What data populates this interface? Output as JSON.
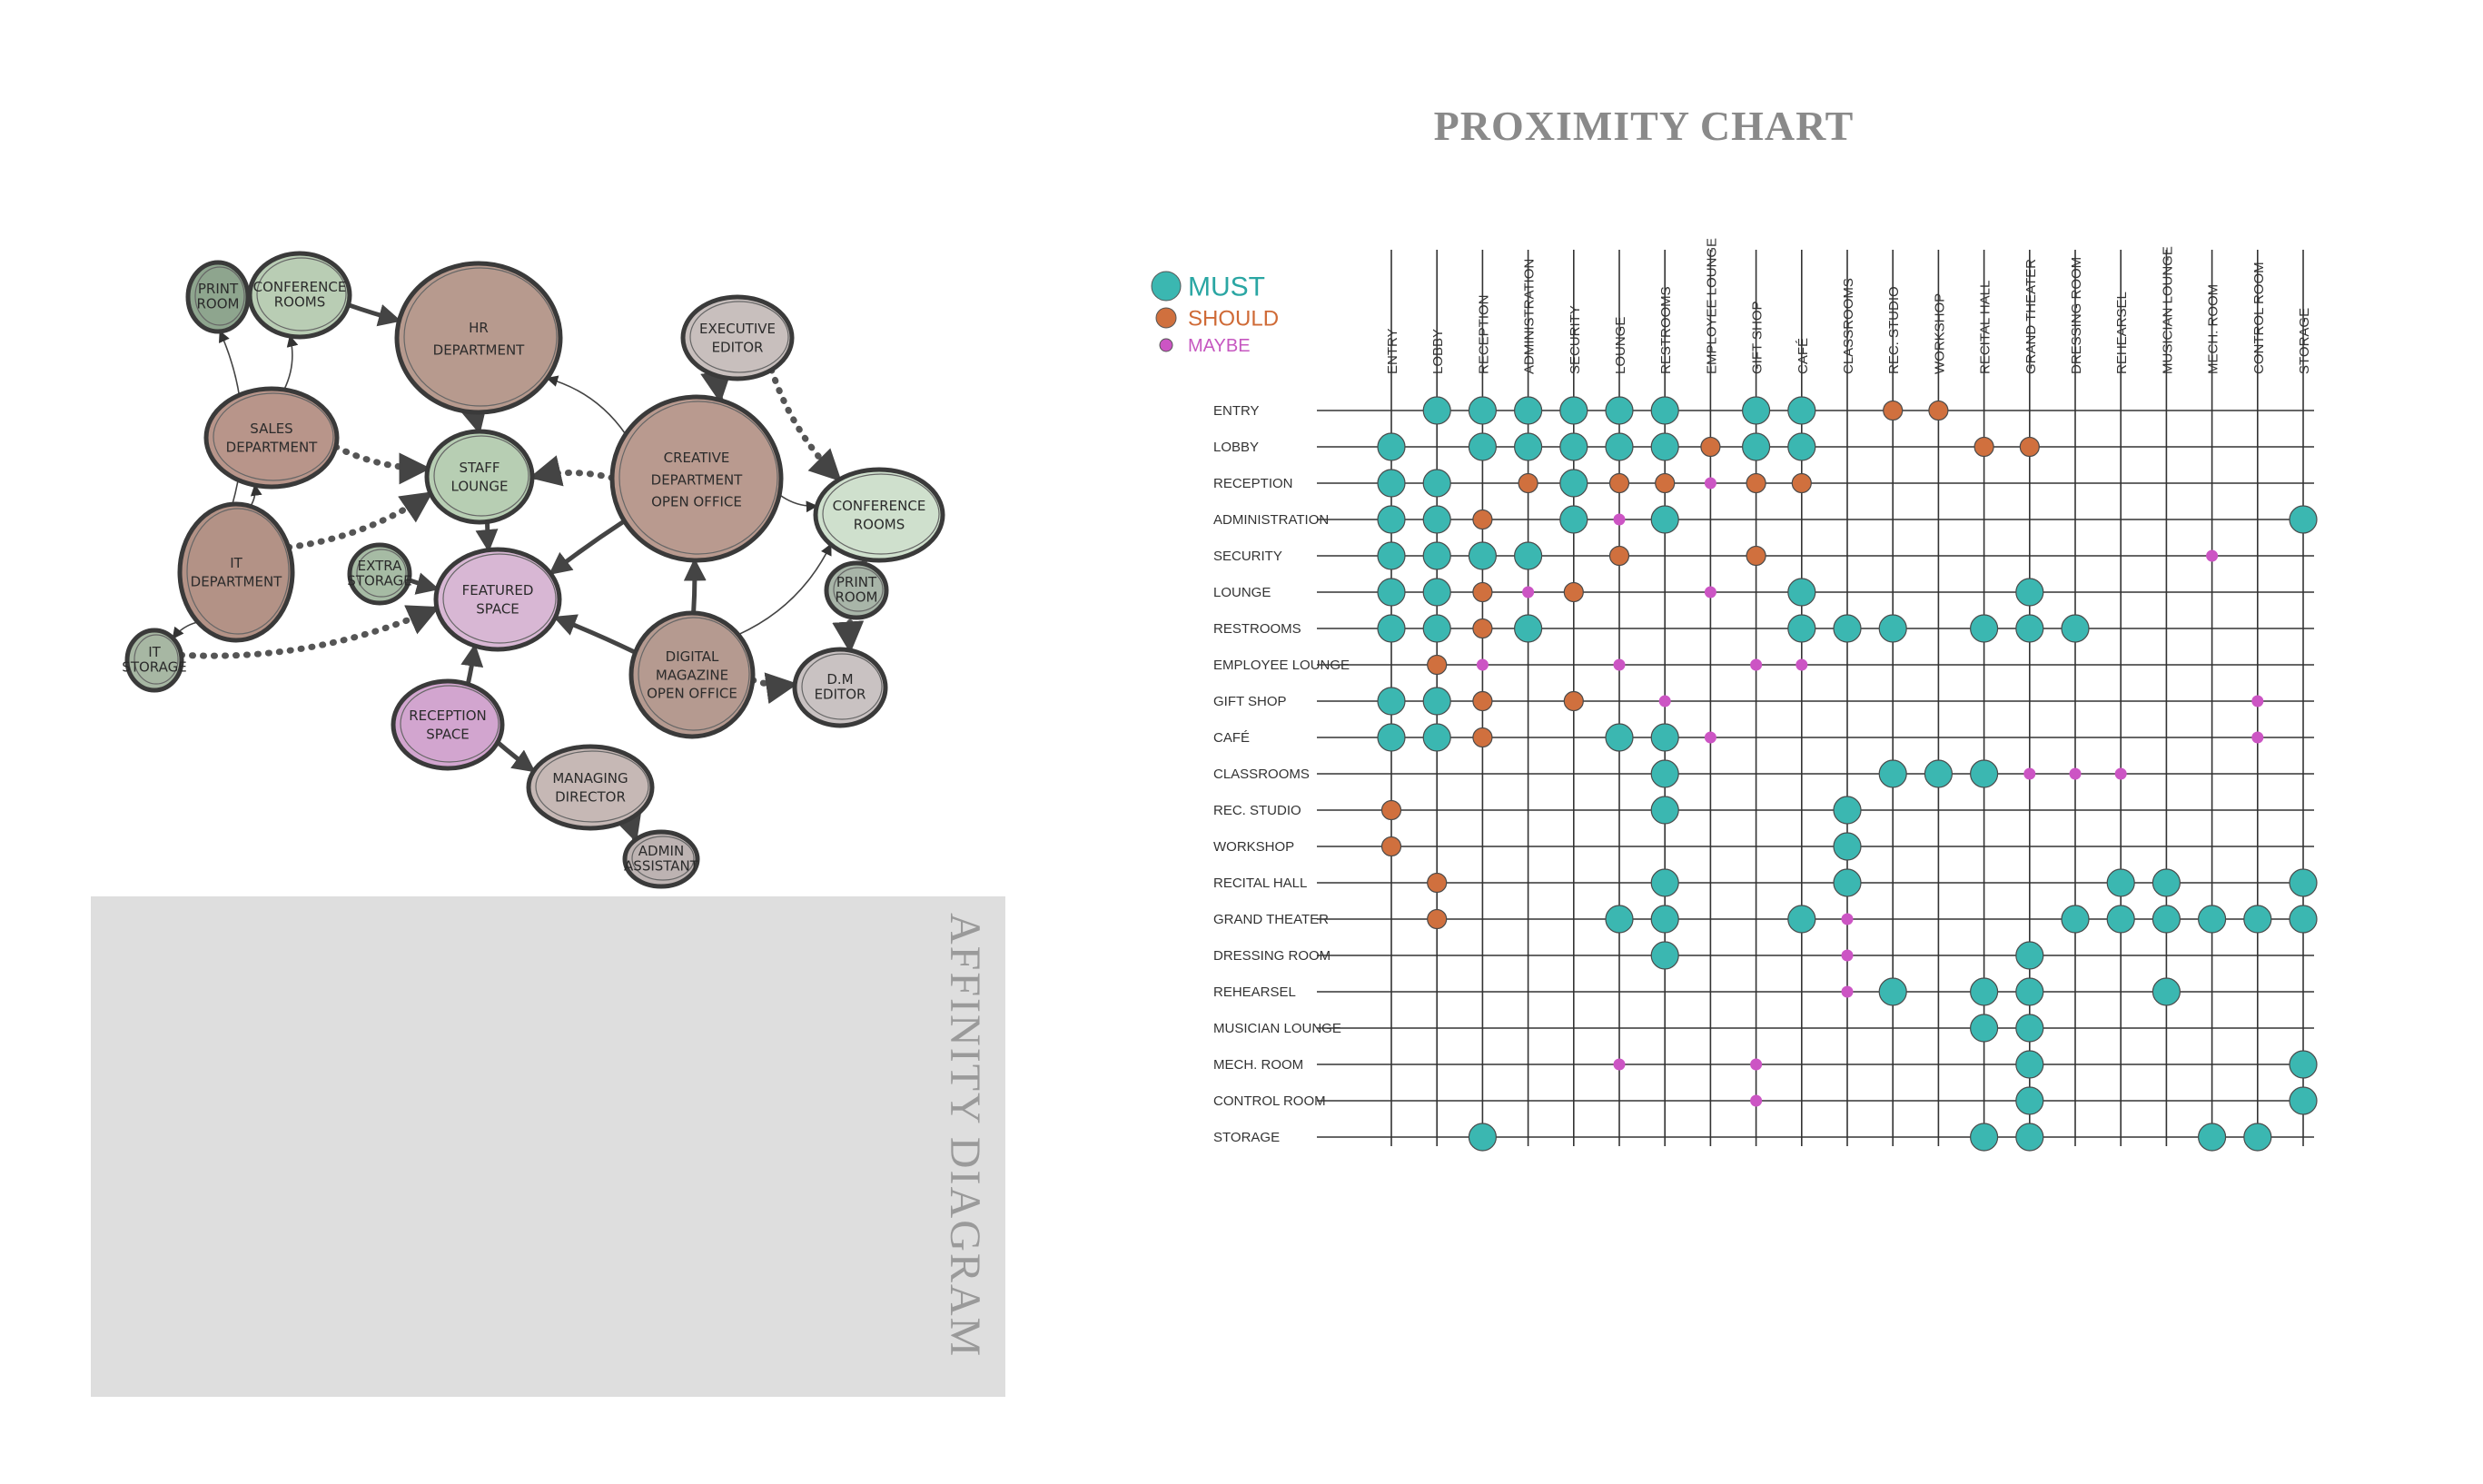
{
  "affinity": {
    "title": "AFFINITY DIAGRAM",
    "nodes": [
      {
        "id": "print",
        "label": [
          "PRINT",
          "ROOM"
        ],
        "color": "#8ea58e"
      },
      {
        "id": "conf1",
        "label": [
          "CONFERENCE",
          "ROOMS"
        ],
        "color": "#b9cdb4"
      },
      {
        "id": "hr",
        "label": [
          "HR",
          "DEPARTMENT"
        ],
        "color": "#b79a8e"
      },
      {
        "id": "exec",
        "label": [
          "EXECUTIVE",
          "EDITOR"
        ],
        "color": "#c8bfbd"
      },
      {
        "id": "sales",
        "label": [
          "SALES",
          "DEPARTMENT"
        ],
        "color": "#b8958a"
      },
      {
        "id": "staff",
        "label": [
          "STAFF",
          "LOUNGE"
        ],
        "color": "#b7ceb3"
      },
      {
        "id": "creative",
        "label": [
          "CREATIVE",
          "DEPARTMENT",
          "OPEN OFFICE"
        ],
        "color": "#b99a8f"
      },
      {
        "id": "conf2",
        "label": [
          "CONFERENCE",
          "ROOMS"
        ],
        "color": "#cfe0cd"
      },
      {
        "id": "it",
        "label": [
          "IT",
          "DEPARTMENT"
        ],
        "color": "#b39286"
      },
      {
        "id": "extra",
        "label": [
          "EXTRA",
          "STORAGE"
        ],
        "color": "#a6bba4"
      },
      {
        "id": "featured",
        "label": [
          "FEATURED",
          "SPACE"
        ],
        "color": "#d8b7d4"
      },
      {
        "id": "print2",
        "label": [
          "PRINT",
          "ROOM"
        ],
        "color": "#a8b5a8"
      },
      {
        "id": "itstorage",
        "label": [
          "IT",
          "STORAGE"
        ],
        "color": "#a7b7a3"
      },
      {
        "id": "digital",
        "label": [
          "DIGITAL",
          "MAGAZINE",
          "OPEN OFFICE"
        ],
        "color": "#b59a90"
      },
      {
        "id": "dmeditor",
        "label": [
          "D.M",
          "EDITOR"
        ],
        "color": "#c9c2c2"
      },
      {
        "id": "reception",
        "label": [
          "RECEPTION",
          "SPACE"
        ],
        "color": "#d2a5cf"
      },
      {
        "id": "managing",
        "label": [
          "MANAGING",
          "DIRECTOR"
        ],
        "color": "#c6b8b5"
      },
      {
        "id": "admin",
        "label": [
          "ADMIN",
          "ASSISTANT"
        ],
        "color": "#bdb3b2"
      }
    ]
  },
  "chart_data": {
    "type": "table",
    "title": "PROXIMITY CHART",
    "legend": [
      {
        "key": "must",
        "label": "MUST",
        "color": "#3bb7b1"
      },
      {
        "key": "should",
        "label": "SHOULD",
        "color": "#d0703e"
      },
      {
        "key": "maybe",
        "label": "MAYBE",
        "color": "#cc55c4"
      }
    ],
    "columns": [
      "ENTRY",
      "LOBBY",
      "RECEPTION",
      "ADMINISTRATION",
      "SECURITY",
      "LOUNGE",
      "RESTROOMS",
      "EMPLOYEE LOUNGE",
      "GIFT SHOP",
      "CAFÉ",
      "CLASSROOMS",
      "REC. STUDIO",
      "WORKSHOP",
      "RECITAL HALL",
      "GRAND THEATER",
      "DRESSING ROOM",
      "REHEARSEL",
      "MUSICIAN LOUNGE",
      "MECH. ROOM",
      "CONTROL ROOM",
      "STORAGE"
    ],
    "rows": [
      "ENTRY",
      "LOBBY",
      "RECEPTION",
      "ADMINISTRATION",
      "SECURITY",
      "LOUNGE",
      "RESTROOMS",
      "EMPLOYEE LOUNGE",
      "GIFT SHOP",
      "CAFÉ",
      "CLASSROOMS",
      "REC. STUDIO",
      "WORKSHOP",
      "RECITAL HALL",
      "GRAND THEATER",
      "DRESSING ROOM",
      "REHEARSEL",
      "MUSICIAN LOUNGE",
      "MECH. ROOM",
      "CONTROL ROOM",
      "STORAGE"
    ],
    "cells": [
      [
        0,
        1,
        "must"
      ],
      [
        0,
        2,
        "must"
      ],
      [
        0,
        3,
        "must"
      ],
      [
        0,
        4,
        "must"
      ],
      [
        0,
        5,
        "must"
      ],
      [
        0,
        6,
        "must"
      ],
      [
        0,
        8,
        "must"
      ],
      [
        0,
        9,
        "must"
      ],
      [
        0,
        11,
        "should"
      ],
      [
        0,
        12,
        "should"
      ],
      [
        1,
        0,
        "must"
      ],
      [
        1,
        2,
        "must"
      ],
      [
        1,
        3,
        "must"
      ],
      [
        1,
        4,
        "must"
      ],
      [
        1,
        5,
        "must"
      ],
      [
        1,
        6,
        "must"
      ],
      [
        1,
        7,
        "should"
      ],
      [
        1,
        8,
        "must"
      ],
      [
        1,
        9,
        "must"
      ],
      [
        1,
        13,
        "should"
      ],
      [
        1,
        14,
        "should"
      ],
      [
        2,
        0,
        "must"
      ],
      [
        2,
        1,
        "must"
      ],
      [
        2,
        3,
        "should"
      ],
      [
        2,
        4,
        "must"
      ],
      [
        2,
        5,
        "should"
      ],
      [
        2,
        6,
        "should"
      ],
      [
        2,
        7,
        "maybe"
      ],
      [
        2,
        8,
        "should"
      ],
      [
        2,
        9,
        "should"
      ],
      [
        3,
        0,
        "must"
      ],
      [
        3,
        1,
        "must"
      ],
      [
        3,
        2,
        "should"
      ],
      [
        3,
        4,
        "must"
      ],
      [
        3,
        5,
        "maybe"
      ],
      [
        3,
        6,
        "must"
      ],
      [
        3,
        20,
        "must"
      ],
      [
        4,
        0,
        "must"
      ],
      [
        4,
        1,
        "must"
      ],
      [
        4,
        2,
        "must"
      ],
      [
        4,
        3,
        "must"
      ],
      [
        4,
        5,
        "should"
      ],
      [
        4,
        8,
        "should"
      ],
      [
        4,
        18,
        "maybe"
      ],
      [
        5,
        0,
        "must"
      ],
      [
        5,
        1,
        "must"
      ],
      [
        5,
        2,
        "should"
      ],
      [
        5,
        3,
        "maybe"
      ],
      [
        5,
        4,
        "should"
      ],
      [
        5,
        7,
        "maybe"
      ],
      [
        5,
        9,
        "must"
      ],
      [
        5,
        14,
        "must"
      ],
      [
        6,
        0,
        "must"
      ],
      [
        6,
        1,
        "must"
      ],
      [
        6,
        2,
        "should"
      ],
      [
        6,
        3,
        "must"
      ],
      [
        6,
        9,
        "must"
      ],
      [
        6,
        10,
        "must"
      ],
      [
        6,
        11,
        "must"
      ],
      [
        6,
        13,
        "must"
      ],
      [
        6,
        14,
        "must"
      ],
      [
        6,
        15,
        "must"
      ],
      [
        7,
        1,
        "should"
      ],
      [
        7,
        2,
        "maybe"
      ],
      [
        7,
        5,
        "maybe"
      ],
      [
        7,
        8,
        "maybe"
      ],
      [
        7,
        9,
        "maybe"
      ],
      [
        8,
        0,
        "must"
      ],
      [
        8,
        1,
        "must"
      ],
      [
        8,
        2,
        "should"
      ],
      [
        8,
        4,
        "should"
      ],
      [
        8,
        6,
        "maybe"
      ],
      [
        8,
        19,
        "maybe"
      ],
      [
        9,
        0,
        "must"
      ],
      [
        9,
        1,
        "must"
      ],
      [
        9,
        2,
        "should"
      ],
      [
        9,
        5,
        "must"
      ],
      [
        9,
        6,
        "must"
      ],
      [
        9,
        7,
        "maybe"
      ],
      [
        9,
        19,
        "maybe"
      ],
      [
        10,
        6,
        "must"
      ],
      [
        10,
        11,
        "must"
      ],
      [
        10,
        12,
        "must"
      ],
      [
        10,
        13,
        "must"
      ],
      [
        10,
        14,
        "maybe"
      ],
      [
        10,
        15,
        "maybe"
      ],
      [
        10,
        16,
        "maybe"
      ],
      [
        11,
        0,
        "should"
      ],
      [
        11,
        6,
        "must"
      ],
      [
        11,
        10,
        "must"
      ],
      [
        12,
        0,
        "should"
      ],
      [
        12,
        10,
        "must"
      ],
      [
        13,
        1,
        "should"
      ],
      [
        13,
        6,
        "must"
      ],
      [
        13,
        10,
        "must"
      ],
      [
        13,
        16,
        "must"
      ],
      [
        13,
        17,
        "must"
      ],
      [
        13,
        20,
        "must"
      ],
      [
        14,
        1,
        "should"
      ],
      [
        14,
        5,
        "must"
      ],
      [
        14,
        6,
        "must"
      ],
      [
        14,
        9,
        "must"
      ],
      [
        14,
        10,
        "maybe"
      ],
      [
        14,
        15,
        "must"
      ],
      [
        14,
        16,
        "must"
      ],
      [
        14,
        17,
        "must"
      ],
      [
        14,
        18,
        "must"
      ],
      [
        14,
        19,
        "must"
      ],
      [
        14,
        20,
        "must"
      ],
      [
        15,
        6,
        "must"
      ],
      [
        15,
        10,
        "maybe"
      ],
      [
        15,
        14,
        "must"
      ],
      [
        16,
        10,
        "maybe"
      ],
      [
        16,
        11,
        "must"
      ],
      [
        16,
        13,
        "must"
      ],
      [
        16,
        14,
        "must"
      ],
      [
        16,
        17,
        "must"
      ],
      [
        17,
        13,
        "must"
      ],
      [
        17,
        14,
        "must"
      ],
      [
        18,
        5,
        "maybe"
      ],
      [
        18,
        8,
        "maybe"
      ],
      [
        18,
        14,
        "must"
      ],
      [
        18,
        20,
        "must"
      ],
      [
        19,
        8,
        "maybe"
      ],
      [
        19,
        14,
        "must"
      ],
      [
        19,
        20,
        "must"
      ],
      [
        20,
        2,
        "must"
      ],
      [
        20,
        13,
        "must"
      ],
      [
        20,
        14,
        "must"
      ],
      [
        20,
        18,
        "must"
      ],
      [
        20,
        19,
        "must"
      ]
    ]
  }
}
